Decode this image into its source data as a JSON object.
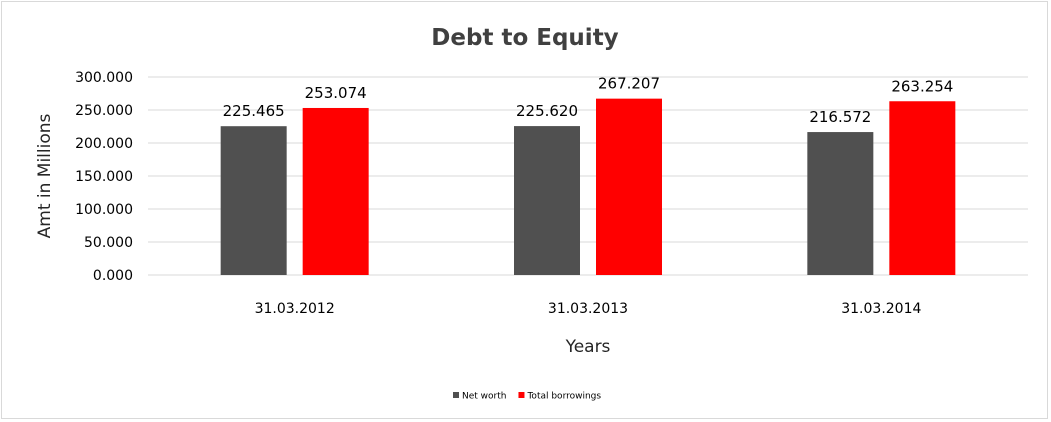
{
  "chart_data": {
    "type": "bar",
    "title": "Debt to Equity",
    "xlabel": "Years",
    "ylabel": "Amt in Millions",
    "categories": [
      "31.03.2012",
      "31.03.2013",
      "31.03.2014"
    ],
    "series": [
      {
        "name": "Net worth",
        "color": "#505050",
        "values": [
          225.465,
          225.62,
          216.572
        ]
      },
      {
        "name": "Total borrowings",
        "color": "#ff0000",
        "values": [
          253.074,
          267.207,
          263.254
        ]
      }
    ],
    "ylim": [
      0,
      300
    ],
    "yticks": [
      "0.000",
      "50.000",
      "100.000",
      "150.000",
      "200.000",
      "250.000",
      "300.000"
    ],
    "data_labels": [
      [
        "225.465",
        "225.620",
        "216.572"
      ],
      [
        "253.074",
        "267.207",
        "263.254"
      ]
    ],
    "grid": true,
    "legend": "bottom"
  }
}
